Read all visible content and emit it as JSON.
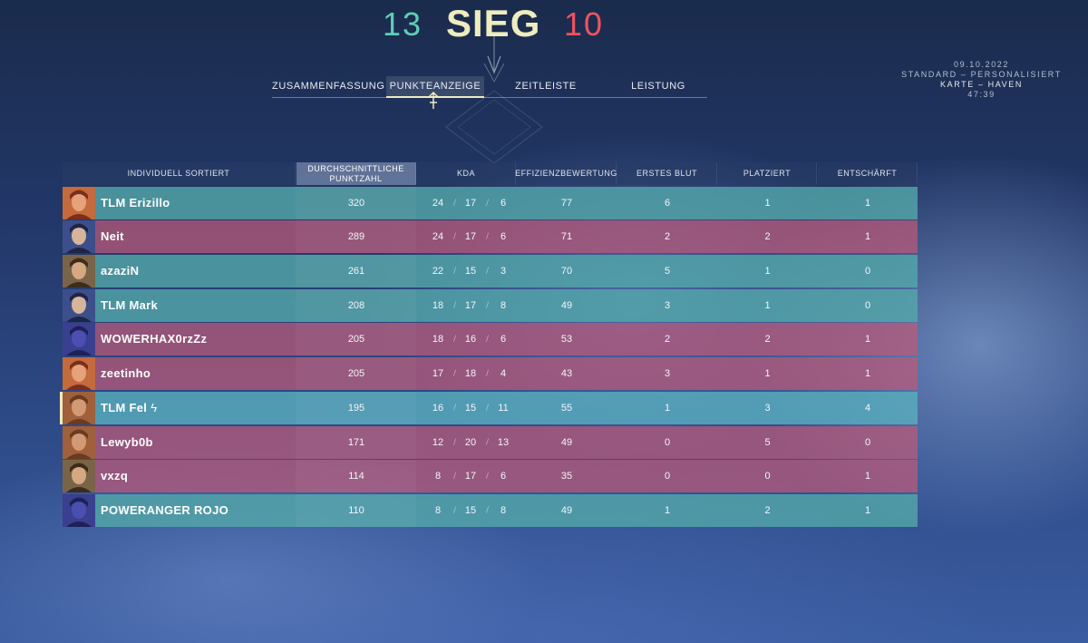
{
  "header": {
    "team_score": "13",
    "result": "SIEG",
    "enemy_score": "10",
    "colors": {
      "team": "#5dcfb3",
      "enemy": "#f0525e",
      "result": "#efecbd"
    }
  },
  "tabs": [
    {
      "label": "ZUSAMMENFASSUNG",
      "active": false
    },
    {
      "label": "PUNKTEANZEIGE",
      "active": true
    },
    {
      "label": "ZEITLEISTE",
      "active": false
    },
    {
      "label": "LEISTUNG",
      "active": false
    }
  ],
  "match_info": {
    "date": "09.10.2022",
    "mode": "STANDARD – PERSONALISIERT",
    "map": "KARTE – HAVEN",
    "duration": "47:39"
  },
  "table": {
    "headers": {
      "sort": "INDIVIDUELL SORTIERT",
      "acs": "DURCHSCHNITTLICHE PUNKTZAHL",
      "kda": "KDA",
      "econ": "EFFIZIENZBEWERTUNG",
      "first_blood": "ERSTES BLUT",
      "plants": "PLATZIERT",
      "defuses": "ENTSCHÄRFT"
    },
    "players": [
      {
        "name": "TLM Erizillo",
        "team": "a",
        "agent": "phoenix-icon",
        "acs": "320",
        "k": "24",
        "d": "17",
        "a": "6",
        "econ": "77",
        "fb": "6",
        "plants": "1",
        "defuses": "1"
      },
      {
        "name": "Neit",
        "team": "b",
        "agent": "yoru-icon",
        "acs": "289",
        "k": "24",
        "d": "17",
        "a": "6",
        "econ": "71",
        "fb": "2",
        "plants": "2",
        "defuses": "1"
      },
      {
        "name": "azaziN",
        "team": "a",
        "agent": "chamber-icon",
        "acs": "261",
        "k": "22",
        "d": "15",
        "a": "3",
        "econ": "70",
        "fb": "5",
        "plants": "1",
        "defuses": "0"
      },
      {
        "name": "TLM Mark",
        "team": "a",
        "agent": "yoru-icon",
        "acs": "208",
        "k": "18",
        "d": "17",
        "a": "8",
        "econ": "49",
        "fb": "3",
        "plants": "1",
        "defuses": "0"
      },
      {
        "name": "WOWERHAX0rzZz",
        "team": "b",
        "agent": "omen-icon",
        "acs": "205",
        "k": "18",
        "d": "16",
        "a": "6",
        "econ": "53",
        "fb": "2",
        "plants": "2",
        "defuses": "1"
      },
      {
        "name": "zeetinho",
        "team": "b",
        "agent": "phoenix-icon",
        "acs": "205",
        "k": "17",
        "d": "18",
        "a": "4",
        "econ": "43",
        "fb": "3",
        "plants": "1",
        "defuses": "1"
      },
      {
        "name": "TLM Fel",
        "team": "self",
        "agent": "brimstone-icon",
        "party": "ϟ",
        "acs": "195",
        "k": "16",
        "d": "15",
        "a": "11",
        "econ": "55",
        "fb": "1",
        "plants": "3",
        "defuses": "4"
      },
      {
        "name": "Lewyb0b",
        "team": "b",
        "agent": "brimstone-icon",
        "acs": "171",
        "k": "12",
        "d": "20",
        "a": "13",
        "econ": "49",
        "fb": "0",
        "plants": "5",
        "defuses": "0"
      },
      {
        "name": "vxzq",
        "team": "b",
        "agent": "chamber-icon",
        "acs": "114",
        "k": "8",
        "d": "17",
        "a": "6",
        "econ": "35",
        "fb": "0",
        "plants": "0",
        "defuses": "1"
      },
      {
        "name": "POWERANGER ROJO",
        "team": "a",
        "agent": "omen-icon",
        "acs": "110",
        "k": "8",
        "d": "15",
        "a": "8",
        "econ": "49",
        "fb": "1",
        "plants": "2",
        "defuses": "1"
      }
    ]
  }
}
